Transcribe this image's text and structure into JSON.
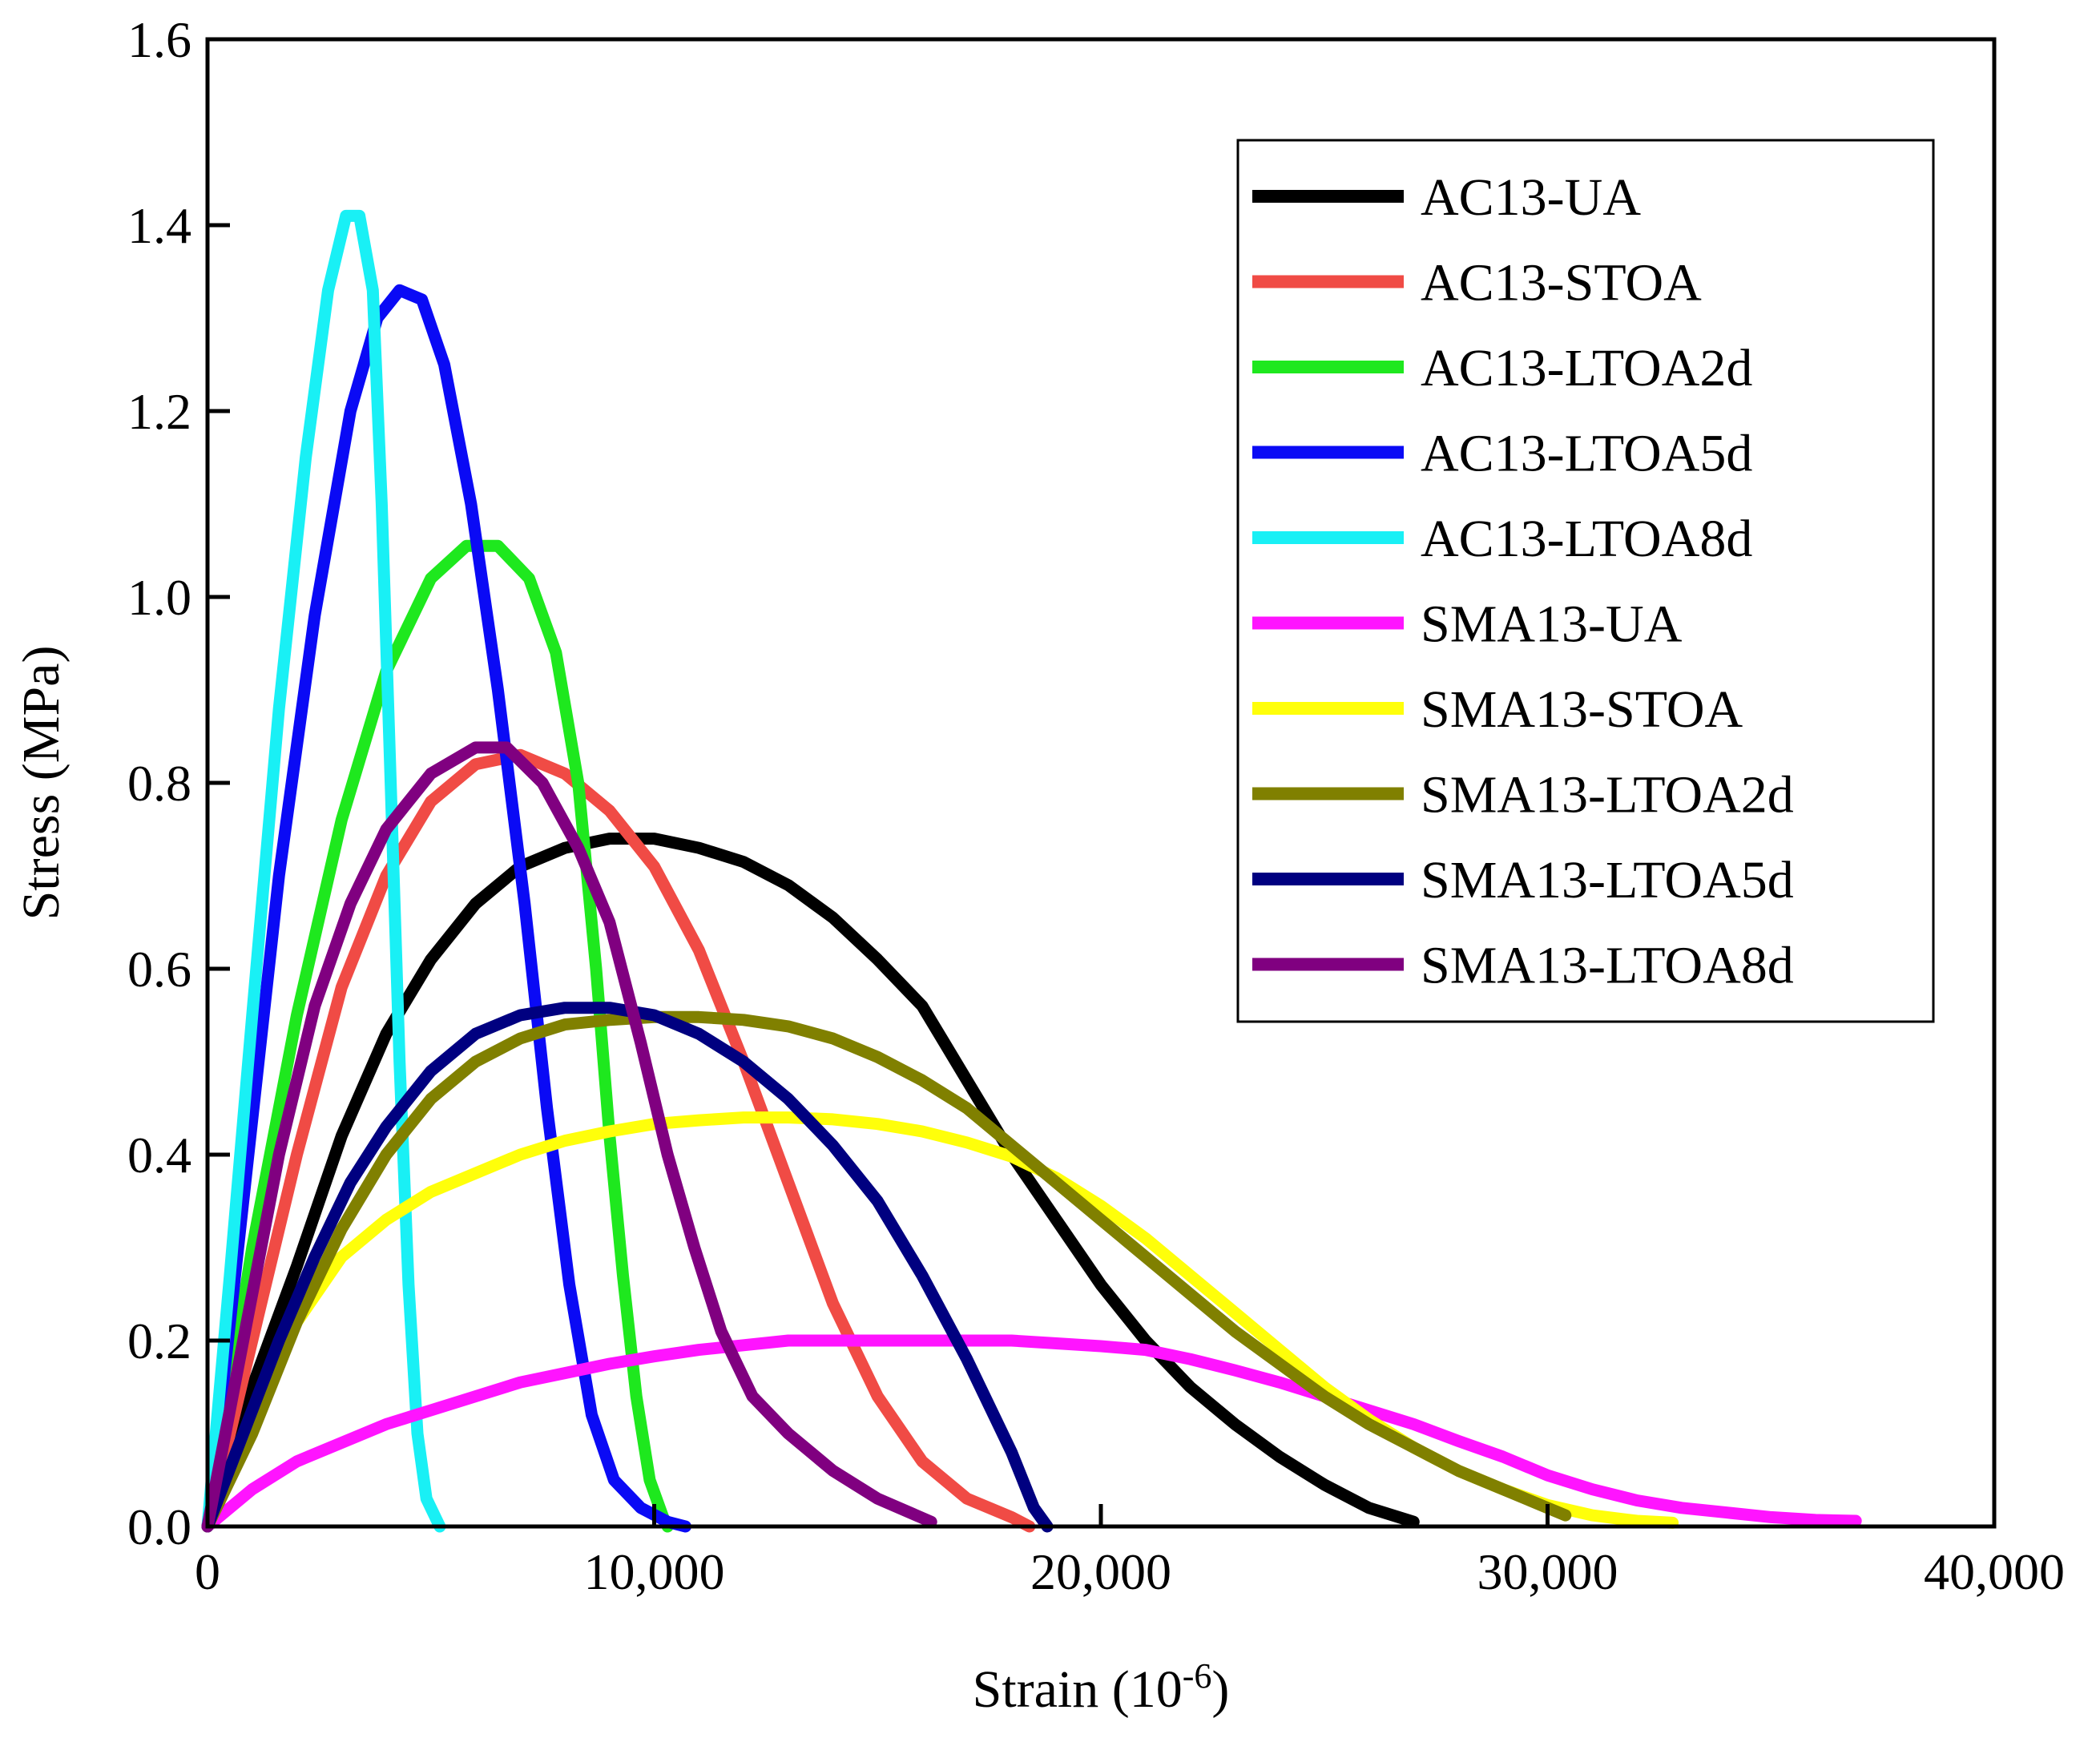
{
  "chart_data": {
    "type": "line",
    "xlabel": "Strain (10",
    "xlabel_sup": "-6",
    "xlabel_end": ")",
    "ylabel": "Stress (MPa)",
    "xlim": [
      0,
      40000
    ],
    "ylim": [
      0,
      1.6
    ],
    "xticks": [
      0,
      10000,
      20000,
      30000,
      40000
    ],
    "xtick_labels": [
      "0",
      "10,000",
      "20,000",
      "30,000",
      "40,000"
    ],
    "yticks": [
      0,
      0.2,
      0.4,
      0.6,
      0.8,
      1.0,
      1.2,
      1.4,
      1.6
    ],
    "ytick_labels": [
      "0.0",
      "0.2",
      "0.4",
      "0.6",
      "0.8",
      "1.0",
      "1.2",
      "1.4",
      "1.6"
    ],
    "grid": false,
    "legend_position": "top-right",
    "series": [
      {
        "name": "AC13-UA",
        "color": "#000000",
        "points": [
          [
            0,
            0
          ],
          [
            1000,
            0.15
          ],
          [
            2000,
            0.28
          ],
          [
            3000,
            0.42
          ],
          [
            4000,
            0.53
          ],
          [
            5000,
            0.61
          ],
          [
            6000,
            0.67
          ],
          [
            7000,
            0.71
          ],
          [
            8000,
            0.73
          ],
          [
            9000,
            0.74
          ],
          [
            10000,
            0.74
          ],
          [
            11000,
            0.73
          ],
          [
            12000,
            0.715
          ],
          [
            13000,
            0.69
          ],
          [
            14000,
            0.655
          ],
          [
            15000,
            0.61
          ],
          [
            16000,
            0.56
          ],
          [
            16500,
            0.52
          ],
          [
            17000,
            0.48
          ],
          [
            18000,
            0.4
          ],
          [
            19000,
            0.33
          ],
          [
            20000,
            0.26
          ],
          [
            21000,
            0.2
          ],
          [
            22000,
            0.15
          ],
          [
            23000,
            0.11
          ],
          [
            24000,
            0.075
          ],
          [
            25000,
            0.045
          ],
          [
            26000,
            0.02
          ],
          [
            27000,
            0.005
          ]
        ]
      },
      {
        "name": "AC13-STOA",
        "color": "#F04B45",
        "points": [
          [
            0,
            0
          ],
          [
            1000,
            0.2
          ],
          [
            2000,
            0.4
          ],
          [
            3000,
            0.58
          ],
          [
            4000,
            0.7
          ],
          [
            5000,
            0.78
          ],
          [
            6000,
            0.82
          ],
          [
            7000,
            0.83
          ],
          [
            8000,
            0.81
          ],
          [
            9000,
            0.77
          ],
          [
            10000,
            0.71
          ],
          [
            11000,
            0.62
          ],
          [
            12000,
            0.5
          ],
          [
            13000,
            0.37
          ],
          [
            14000,
            0.24
          ],
          [
            15000,
            0.14
          ],
          [
            16000,
            0.07
          ],
          [
            17000,
            0.03
          ],
          [
            18000,
            0.01
          ],
          [
            18400,
            0
          ]
        ]
      },
      {
        "name": "AC13-LTOA2d",
        "color": "#1EE81E",
        "points": [
          [
            0,
            0
          ],
          [
            1000,
            0.3
          ],
          [
            2000,
            0.55
          ],
          [
            3000,
            0.76
          ],
          [
            4000,
            0.92
          ],
          [
            5000,
            1.02
          ],
          [
            5800,
            1.055
          ],
          [
            6500,
            1.055
          ],
          [
            7200,
            1.02
          ],
          [
            7800,
            0.94
          ],
          [
            8300,
            0.8
          ],
          [
            8700,
            0.6
          ],
          [
            9000,
            0.42
          ],
          [
            9300,
            0.27
          ],
          [
            9600,
            0.14
          ],
          [
            9900,
            0.05
          ],
          [
            10200,
            0.01
          ],
          [
            10300,
            0
          ]
        ]
      },
      {
        "name": "AC13-LTOA5d",
        "color": "#0A0AF5",
        "points": [
          [
            0,
            0
          ],
          [
            800,
            0.35
          ],
          [
            1600,
            0.7
          ],
          [
            2400,
            0.98
          ],
          [
            3200,
            1.2
          ],
          [
            3800,
            1.3
          ],
          [
            4300,
            1.33
          ],
          [
            4800,
            1.32
          ],
          [
            5300,
            1.25
          ],
          [
            5900,
            1.1
          ],
          [
            6500,
            0.9
          ],
          [
            7100,
            0.67
          ],
          [
            7600,
            0.45
          ],
          [
            8100,
            0.26
          ],
          [
            8600,
            0.12
          ],
          [
            9100,
            0.05
          ],
          [
            9700,
            0.02
          ],
          [
            10300,
            0.005
          ],
          [
            10700,
            0
          ]
        ]
      },
      {
        "name": "AC13-LTOA8d",
        "color": "#19F0F5",
        "points": [
          [
            0,
            0
          ],
          [
            500,
            0.27
          ],
          [
            1000,
            0.55
          ],
          [
            1600,
            0.88
          ],
          [
            2200,
            1.15
          ],
          [
            2700,
            1.33
          ],
          [
            3100,
            1.41
          ],
          [
            3400,
            1.41
          ],
          [
            3700,
            1.33
          ],
          [
            3900,
            1.1
          ],
          [
            4100,
            0.8
          ],
          [
            4300,
            0.5
          ],
          [
            4500,
            0.26
          ],
          [
            4700,
            0.1
          ],
          [
            4900,
            0.03
          ],
          [
            5200,
            0
          ]
        ]
      },
      {
        "name": "SMA13-UA",
        "color": "#FF14FF",
        "points": [
          [
            0,
            0
          ],
          [
            1000,
            0.04
          ],
          [
            2000,
            0.07
          ],
          [
            3000,
            0.09
          ],
          [
            4000,
            0.11
          ],
          [
            5000,
            0.125
          ],
          [
            6000,
            0.14
          ],
          [
            7000,
            0.155
          ],
          [
            8000,
            0.165
          ],
          [
            9000,
            0.175
          ],
          [
            10000,
            0.183
          ],
          [
            11000,
            0.19
          ],
          [
            12000,
            0.195
          ],
          [
            13000,
            0.2
          ],
          [
            14000,
            0.2
          ],
          [
            15000,
            0.2
          ],
          [
            16000,
            0.2
          ],
          [
            17000,
            0.2
          ],
          [
            18000,
            0.2
          ],
          [
            19000,
            0.197
          ],
          [
            20000,
            0.194
          ],
          [
            21000,
            0.19
          ],
          [
            22000,
            0.18
          ],
          [
            23000,
            0.168
          ],
          [
            24000,
            0.155
          ],
          [
            25000,
            0.14
          ],
          [
            26000,
            0.125
          ],
          [
            27000,
            0.11
          ],
          [
            28000,
            0.092
          ],
          [
            29000,
            0.075
          ],
          [
            30000,
            0.055
          ],
          [
            31000,
            0.04
          ],
          [
            32000,
            0.028
          ],
          [
            33000,
            0.02
          ],
          [
            34000,
            0.015
          ],
          [
            35000,
            0.01
          ],
          [
            36000,
            0.007
          ],
          [
            36900,
            0.006
          ]
        ]
      },
      {
        "name": "SMA13-STOA",
        "color": "#FFFF0A",
        "points": [
          [
            0,
            0
          ],
          [
            1000,
            0.12
          ],
          [
            2000,
            0.22
          ],
          [
            3000,
            0.29
          ],
          [
            4000,
            0.33
          ],
          [
            5000,
            0.36
          ],
          [
            6000,
            0.38
          ],
          [
            7000,
            0.4
          ],
          [
            8000,
            0.415
          ],
          [
            9000,
            0.425
          ],
          [
            10000,
            0.433
          ],
          [
            11000,
            0.437
          ],
          [
            12000,
            0.44
          ],
          [
            13000,
            0.44
          ],
          [
            14000,
            0.438
          ],
          [
            15000,
            0.433
          ],
          [
            16000,
            0.425
          ],
          [
            17000,
            0.413
          ],
          [
            18000,
            0.398
          ],
          [
            19000,
            0.375
          ],
          [
            20000,
            0.345
          ],
          [
            21000,
            0.31
          ],
          [
            22000,
            0.27
          ],
          [
            23000,
            0.23
          ],
          [
            24000,
            0.19
          ],
          [
            25000,
            0.15
          ],
          [
            26000,
            0.115
          ],
          [
            27000,
            0.085
          ],
          [
            28000,
            0.06
          ],
          [
            29000,
            0.04
          ],
          [
            30000,
            0.023
          ],
          [
            31000,
            0.012
          ],
          [
            32000,
            0.006
          ],
          [
            32800,
            0.004
          ]
        ]
      },
      {
        "name": "SMA13-LTOA2d",
        "color": "#808000",
        "points": [
          [
            0,
            0
          ],
          [
            1000,
            0.1
          ],
          [
            2000,
            0.22
          ],
          [
            3000,
            0.32
          ],
          [
            4000,
            0.4
          ],
          [
            5000,
            0.46
          ],
          [
            6000,
            0.5
          ],
          [
            7000,
            0.525
          ],
          [
            8000,
            0.54
          ],
          [
            9000,
            0.545
          ],
          [
            10000,
            0.548
          ],
          [
            11000,
            0.548
          ],
          [
            12000,
            0.545
          ],
          [
            13000,
            0.538
          ],
          [
            14000,
            0.525
          ],
          [
            15000,
            0.505
          ],
          [
            16000,
            0.48
          ],
          [
            17000,
            0.45
          ],
          [
            18000,
            0.41
          ],
          [
            19000,
            0.37
          ],
          [
            20000,
            0.33
          ],
          [
            21000,
            0.29
          ],
          [
            22000,
            0.25
          ],
          [
            23000,
            0.21
          ],
          [
            24000,
            0.175
          ],
          [
            25000,
            0.14
          ],
          [
            26000,
            0.11
          ],
          [
            27000,
            0.085
          ],
          [
            28000,
            0.06
          ],
          [
            29000,
            0.04
          ],
          [
            30000,
            0.02
          ],
          [
            30400,
            0.012
          ]
        ]
      },
      {
        "name": "SMA13-LTOA5d",
        "color": "#000080",
        "points": [
          [
            0,
            0
          ],
          [
            800,
            0.1
          ],
          [
            1600,
            0.2
          ],
          [
            2400,
            0.29
          ],
          [
            3200,
            0.37
          ],
          [
            4000,
            0.43
          ],
          [
            5000,
            0.49
          ],
          [
            6000,
            0.53
          ],
          [
            7000,
            0.55
          ],
          [
            8000,
            0.558
          ],
          [
            9000,
            0.558
          ],
          [
            10000,
            0.55
          ],
          [
            11000,
            0.53
          ],
          [
            12000,
            0.5
          ],
          [
            13000,
            0.46
          ],
          [
            14000,
            0.41
          ],
          [
            15000,
            0.35
          ],
          [
            16000,
            0.27
          ],
          [
            17000,
            0.18
          ],
          [
            18000,
            0.08
          ],
          [
            18500,
            0.02
          ],
          [
            18800,
            0
          ]
        ]
      },
      {
        "name": "SMA13-LTOA8d",
        "color": "#800080",
        "points": [
          [
            0,
            0
          ],
          [
            800,
            0.2
          ],
          [
            1600,
            0.4
          ],
          [
            2400,
            0.56
          ],
          [
            3200,
            0.67
          ],
          [
            4000,
            0.75
          ],
          [
            5000,
            0.81
          ],
          [
            6000,
            0.838
          ],
          [
            6700,
            0.838
          ],
          [
            7500,
            0.8
          ],
          [
            8300,
            0.73
          ],
          [
            9000,
            0.65
          ],
          [
            9700,
            0.52
          ],
          [
            10300,
            0.4
          ],
          [
            10900,
            0.3
          ],
          [
            11500,
            0.21
          ],
          [
            12200,
            0.14
          ],
          [
            13000,
            0.1
          ],
          [
            14000,
            0.06
          ],
          [
            15000,
            0.03
          ],
          [
            16200,
            0.005
          ]
        ]
      }
    ]
  }
}
